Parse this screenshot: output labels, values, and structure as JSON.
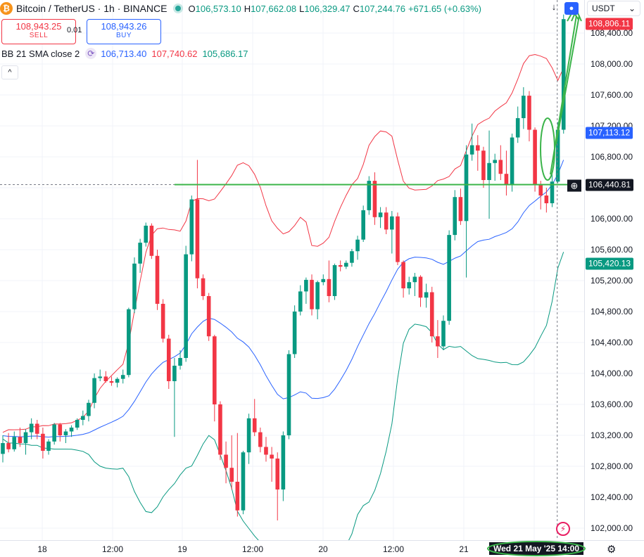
{
  "header": {
    "symbol_title": "Bitcoin / TetherUS · 1h · BINANCE",
    "ohlc": {
      "o_label": "O",
      "o_value": "106,573.10",
      "h_label": "H",
      "h_value": "107,662.08",
      "l_label": "L",
      "l_value": "106,329.47",
      "c_label": "C",
      "c_value": "107,244.76",
      "change": "+671.65 (+0.63%)"
    }
  },
  "trade": {
    "sell_price": "108,943.25",
    "sell_label": "SELL",
    "spread": "0.01",
    "buy_price": "108,943.26",
    "buy_label": "BUY"
  },
  "indicator": {
    "name": "BB 21 SMA close 2",
    "basis": "106,713.40",
    "upper": "107,740.62",
    "lower": "105,686.17"
  },
  "toolbar": {
    "currency": "USDT",
    "collapse_glyph": "^",
    "arrow_glyph": "↓",
    "chevron_glyph": "⌄"
  },
  "price_axis": {
    "ticks": [
      "108,400.00",
      "108,000.00",
      "107,600.00",
      "107,200.00",
      "106,800.00",
      "106,000.00",
      "105,600.00",
      "105,200.00",
      "104,800.00",
      "104,400.00",
      "104,000.00",
      "103,600.00",
      "103,200.00",
      "102,800.00",
      "102,400.00",
      "102,000.00"
    ],
    "labels": {
      "upper_band": "108,806.11",
      "last_price": "107,113.12",
      "crosshair": "106,440.81",
      "lower_band": "105,420.13"
    }
  },
  "time_axis": {
    "ticks": [
      "18",
      "12:00",
      "19",
      "12:00",
      "20",
      "12:00",
      "21"
    ],
    "cursor_label": "Wed 21 May '25   14:00"
  },
  "colors": {
    "up": "#089981",
    "down": "#f23645",
    "basis": "#2962ff",
    "upper_band": "#f23645",
    "lower_band": "#089981",
    "annotation": "#3bb44a"
  },
  "icons": {
    "symbol": "bitcoin-icon",
    "settings": "gear-icon",
    "flash": "lightning-icon"
  },
  "chart_data": {
    "type": "candlestick",
    "interval": "1h",
    "ylim": [
      101900,
      108600
    ],
    "candles": [
      [
        102960,
        103200,
        102850,
        103100
      ],
      [
        103100,
        103230,
        102980,
        103020
      ],
      [
        103020,
        103250,
        102990,
        103180
      ],
      [
        103180,
        103300,
        103050,
        103100
      ],
      [
        103100,
        103280,
        102950,
        103240
      ],
      [
        103240,
        103420,
        103150,
        103350
      ],
      [
        103350,
        103400,
        103150,
        103220
      ],
      [
        103220,
        103300,
        102900,
        103000
      ],
      [
        103000,
        103150,
        102950,
        103120
      ],
      [
        103120,
        103360,
        103080,
        103340
      ],
      [
        103340,
        103360,
        103120,
        103200
      ],
      [
        103200,
        103280,
        103100,
        103250
      ],
      [
        103250,
        103330,
        103180,
        103300
      ],
      [
        103300,
        103420,
        103270,
        103400
      ],
      [
        103400,
        103520,
        103330,
        103450
      ],
      [
        103450,
        103660,
        103380,
        103620
      ],
      [
        103620,
        104000,
        103550,
        103940
      ],
      [
        103940,
        104050,
        103900,
        103960
      ],
      [
        103960,
        104030,
        103880,
        103900
      ],
      [
        103900,
        103960,
        103840,
        103880
      ],
      [
        103880,
        103950,
        103820,
        103930
      ],
      [
        103930,
        104050,
        103870,
        103980
      ],
      [
        103980,
        104850,
        103950,
        104830
      ],
      [
        104830,
        105500,
        104780,
        105420
      ],
      [
        105420,
        105740,
        105300,
        105690
      ],
      [
        105690,
        105950,
        105640,
        105910
      ],
      [
        105910,
        105940,
        105480,
        105520
      ],
      [
        105520,
        105600,
        104820,
        104900
      ],
      [
        104900,
        104960,
        104400,
        104450
      ],
      [
        104450,
        104500,
        103800,
        103900
      ],
      [
        103900,
        104200,
        103180,
        104100
      ],
      [
        104100,
        104300,
        104050,
        104200
      ],
      [
        104200,
        105650,
        104150,
        105540
      ],
      [
        105540,
        106300,
        105450,
        106250
      ],
      [
        106250,
        106760,
        105100,
        105230
      ],
      [
        105230,
        105280,
        104950,
        105000
      ],
      [
        105000,
        105040,
        104420,
        104480
      ],
      [
        104480,
        104500,
        103380,
        103600
      ],
      [
        103600,
        103640,
        102880,
        102950
      ],
      [
        102950,
        103120,
        102580,
        102780
      ],
      [
        102780,
        103200,
        102500,
        102600
      ],
      [
        102600,
        103230,
        102150,
        102230
      ],
      [
        102230,
        103000,
        102180,
        102980
      ],
      [
        102980,
        103480,
        102830,
        103420
      ],
      [
        103420,
        103670,
        103190,
        103240
      ],
      [
        103240,
        103300,
        102980,
        103050
      ],
      [
        103050,
        103180,
        102860,
        102950
      ],
      [
        102950,
        103050,
        102600,
        102900
      ],
      [
        102900,
        102980,
        102100,
        102500
      ],
      [
        102500,
        103250,
        102350,
        103200
      ],
      [
        103200,
        104300,
        103150,
        104250
      ],
      [
        104250,
        104880,
        104200,
        104800
      ],
      [
        104800,
        105140,
        104750,
        105060
      ],
      [
        105060,
        105240,
        104900,
        105210
      ],
      [
        105210,
        105280,
        104750,
        104830
      ],
      [
        104830,
        105200,
        104700,
        105180
      ],
      [
        105180,
        105280,
        105140,
        105220
      ],
      [
        105220,
        105460,
        104920,
        105000
      ],
      [
        105000,
        105420,
        104950,
        105400
      ],
      [
        105400,
        105460,
        105320,
        105380
      ],
      [
        105380,
        105460,
        105350,
        105430
      ],
      [
        105430,
        105610,
        105380,
        105580
      ],
      [
        105580,
        105780,
        105470,
        105730
      ],
      [
        105730,
        106170,
        105700,
        106110
      ],
      [
        106110,
        106550,
        106050,
        106490
      ],
      [
        106490,
        106600,
        105920,
        106020
      ],
      [
        106020,
        106150,
        105880,
        106080
      ],
      [
        106080,
        106150,
        105800,
        105860
      ],
      [
        105860,
        106100,
        105550,
        106030
      ],
      [
        106030,
        106080,
        105400,
        105440
      ],
      [
        105440,
        105460,
        104980,
        105100
      ],
      [
        105100,
        105250,
        105020,
        105180
      ],
      [
        105180,
        105300,
        105000,
        105250
      ],
      [
        105250,
        105270,
        104860,
        104980
      ],
      [
        104980,
        105160,
        104850,
        105050
      ],
      [
        105050,
        105120,
        104400,
        104480
      ],
      [
        104480,
        104690,
        104200,
        104350
      ],
      [
        104350,
        104750,
        104300,
        104680
      ],
      [
        104680,
        105850,
        104630,
        105790
      ],
      [
        105790,
        106370,
        105720,
        106280
      ],
      [
        106280,
        106390,
        105920,
        105970
      ],
      [
        105970,
        106950,
        105240,
        106830
      ],
      [
        106830,
        107230,
        106750,
        106950
      ],
      [
        106950,
        107080,
        106620,
        106880
      ],
      [
        106880,
        106930,
        106400,
        106500
      ],
      [
        106500,
        107140,
        106000,
        106720
      ],
      [
        106720,
        106840,
        106490,
        106760
      ],
      [
        106760,
        106950,
        106500,
        106580
      ],
      [
        106580,
        106880,
        106300,
        106450
      ],
      [
        106450,
        107100,
        106350,
        107050
      ],
      [
        107050,
        107450,
        106980,
        107300
      ],
      [
        107300,
        107700,
        107160,
        107590
      ],
      [
        107590,
        107650,
        107000,
        107150
      ],
      [
        107150,
        107180,
        106350,
        106450
      ],
      [
        106450,
        106490,
        106120,
        106300
      ],
      [
        106300,
        106400,
        106080,
        106200
      ],
      [
        106200,
        106600,
        106150,
        106480
      ],
      [
        106480,
        107250,
        106460,
        107150
      ],
      [
        107150,
        108640,
        107100,
        108580
      ]
    ],
    "bollinger": {
      "period": 21,
      "basis_series_color": "#2962ff",
      "upper_series_color": "#f23645",
      "lower_series_color": "#089981"
    }
  }
}
